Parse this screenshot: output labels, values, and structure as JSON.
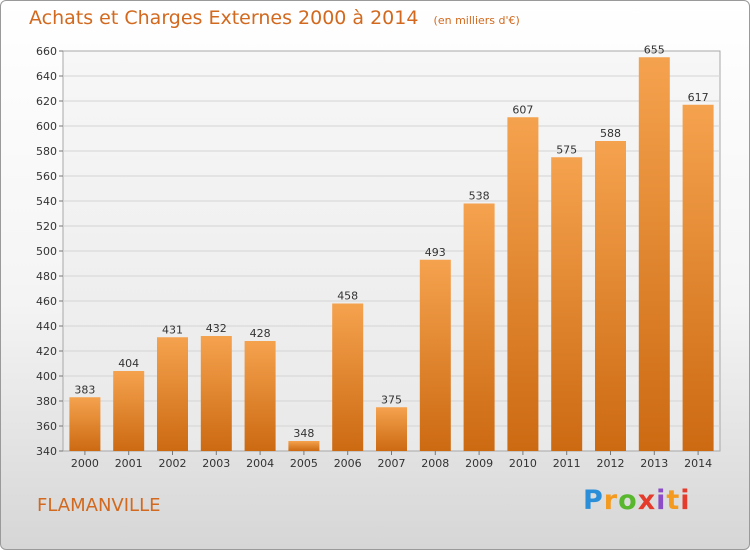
{
  "header": {
    "title": "Achats et Charges Externes 2000 à 2014",
    "unit": "(en milliers d'€)"
  },
  "footer": {
    "city": "FLAMANVILLE",
    "logo_text": "Proxiti"
  },
  "colors": {
    "bar_top": "#f5a24e",
    "bar_bottom": "#cc6a12",
    "title": "#d2691e",
    "grid": "#d4d4d4"
  },
  "chart_data": {
    "type": "bar",
    "title": "Achats et Charges Externes 2000 à 2014",
    "xlabel": "",
    "ylabel": "",
    "categories": [
      "2000",
      "2001",
      "2002",
      "2003",
      "2004",
      "2005",
      "2006",
      "2007",
      "2008",
      "2009",
      "2010",
      "2011",
      "2012",
      "2013",
      "2014"
    ],
    "values": [
      383,
      404,
      431,
      432,
      428,
      348,
      458,
      375,
      493,
      538,
      607,
      575,
      588,
      655,
      617
    ],
    "ylim": [
      340,
      660
    ],
    "yticks": [
      340,
      360,
      380,
      400,
      420,
      440,
      460,
      480,
      500,
      520,
      540,
      560,
      580,
      600,
      620,
      640,
      660
    ],
    "grid": true,
    "legend": "none"
  }
}
